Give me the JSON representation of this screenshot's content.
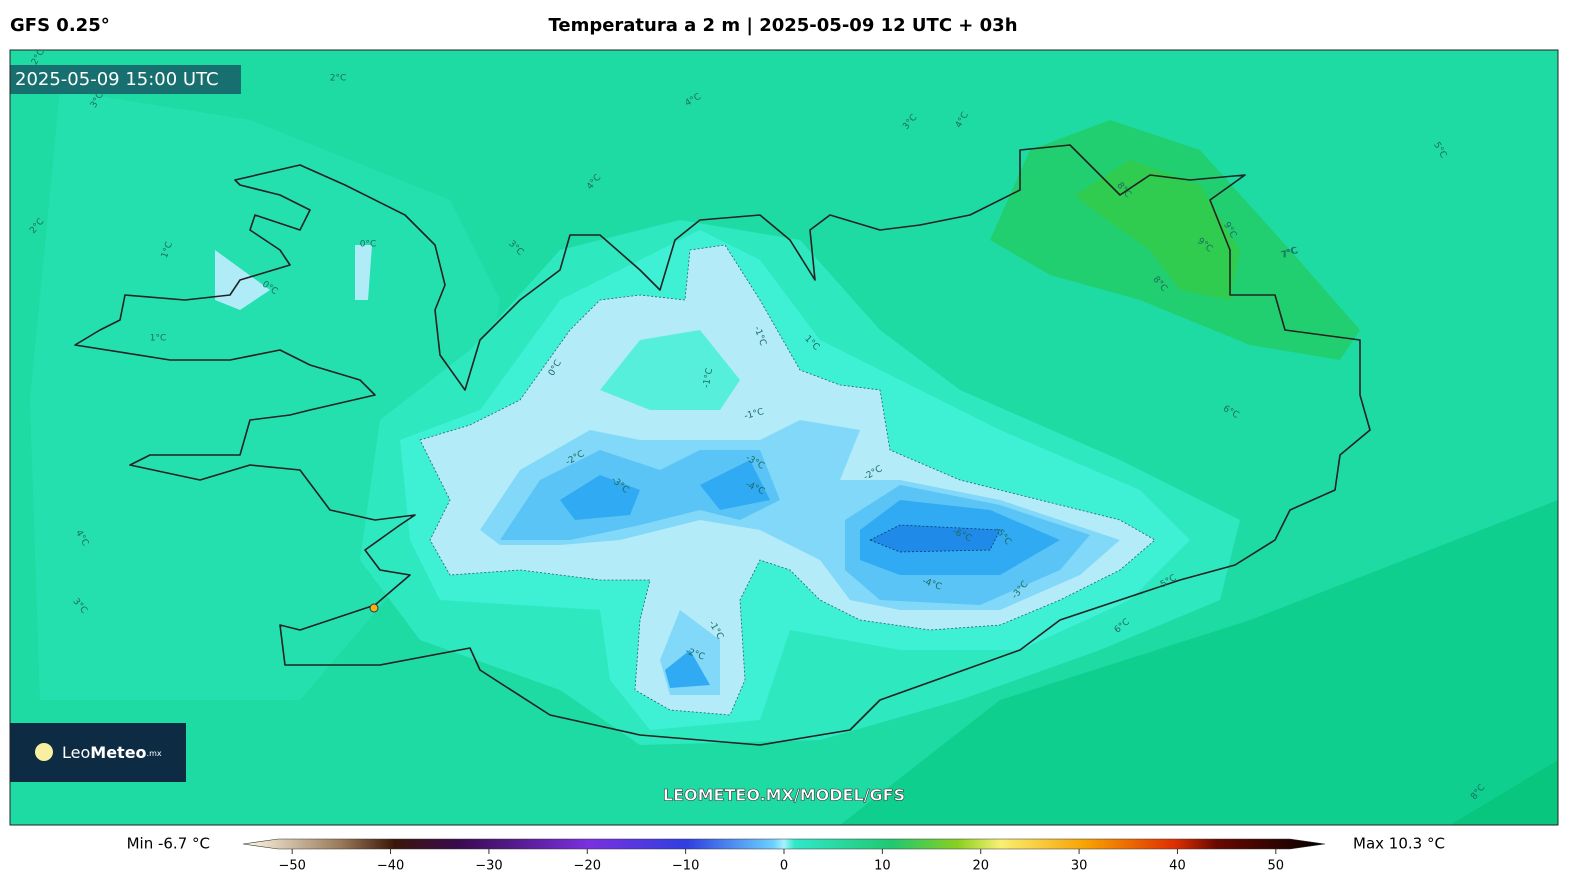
{
  "header": {
    "model": "GFS 0.25°",
    "title": "Temperatura a 2 m | 2025-05-09 12 UTC + 03h"
  },
  "map": {
    "valid_time": "2025-05-09 15:00 UTC",
    "watermark": "LEOMETEO.MX/MODEL/GFS",
    "logo": {
      "name_light": "Leo",
      "name_bold": "Meteo",
      "suffix": ".mx"
    },
    "contour_labels": [
      "2°C",
      "2°C",
      "3°C",
      "4°C",
      "3°C",
      "4°C",
      "5°C",
      "4°C",
      "3°C",
      "2°C",
      "0°C",
      "0°C",
      "1°C",
      "1°C",
      "0°C",
      "-1°C",
      "-1°C",
      "1°C",
      "-1°C",
      "-2°C",
      "-3°C",
      "-3°C",
      "-4°C",
      "-2°C",
      "-6°C",
      "-5°C",
      "-4°C",
      "-3°C",
      "-1°C",
      "-2°C",
      "-5°C",
      "6°C",
      "7°C",
      "8°C",
      "9°C",
      "9°C",
      "7°C",
      "8°C",
      "6°C",
      "4°C",
      "3°C",
      "8°C"
    ]
  },
  "colorbar": {
    "min_label": "Min -6.7 °C",
    "max_label": "Max 10.3 °C",
    "lim": [
      -55,
      55
    ],
    "ticks": [
      {
        "value": -50,
        "label": "−50"
      },
      {
        "value": -40,
        "label": "−40"
      },
      {
        "value": -30,
        "label": "−30"
      },
      {
        "value": -20,
        "label": "−20"
      },
      {
        "value": -10,
        "label": "−10"
      },
      0,
      10,
      20,
      30,
      40,
      50
    ]
  }
}
